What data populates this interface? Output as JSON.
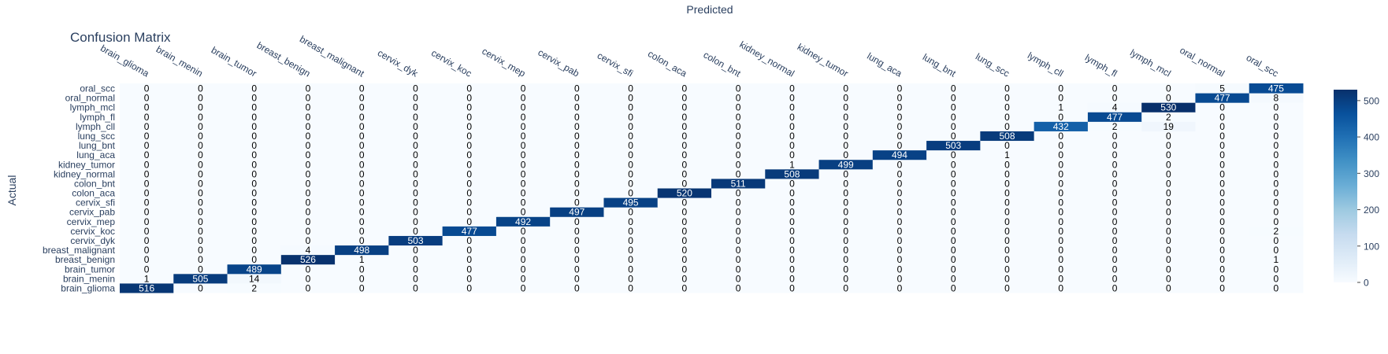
{
  "chart_data": {
    "type": "heatmap",
    "title": "Confusion Matrix",
    "xlabel": "Predicted",
    "ylabel": "Actual",
    "x": [
      "brain_glioma",
      "brain_menin",
      "brain_tumor",
      "breast_benign",
      "breast_malignant",
      "cervix_dyk",
      "cervix_koc",
      "cervix_mep",
      "cervix_pab",
      "cervix_sfi",
      "colon_aca",
      "colon_bnt",
      "kidney_normal",
      "kidney_tumor",
      "lung_aca",
      "lung_bnt",
      "lung_scc",
      "lymph_cll",
      "lymph_fl",
      "lymph_mcl",
      "oral_normal",
      "oral_scc"
    ],
    "y": [
      "brain_glioma",
      "brain_menin",
      "brain_tumor",
      "breast_benign",
      "breast_malignant",
      "cervix_dyk",
      "cervix_koc",
      "cervix_mep",
      "cervix_pab",
      "cervix_sfi",
      "colon_aca",
      "colon_bnt",
      "kidney_normal",
      "kidney_tumor",
      "lung_aca",
      "lung_bnt",
      "lung_scc",
      "lymph_cll",
      "lymph_fl",
      "lymph_mcl",
      "oral_normal",
      "oral_scc"
    ],
    "z": [
      [
        516,
        0,
        2,
        0,
        0,
        0,
        0,
        0,
        0,
        0,
        0,
        0,
        0,
        0,
        0,
        0,
        0,
        0,
        0,
        0,
        0,
        0
      ],
      [
        1,
        505,
        14,
        0,
        0,
        0,
        0,
        0,
        0,
        0,
        0,
        0,
        0,
        0,
        0,
        0,
        0,
        0,
        0,
        0,
        0,
        0
      ],
      [
        0,
        0,
        489,
        0,
        0,
        0,
        0,
        0,
        0,
        0,
        0,
        0,
        0,
        0,
        0,
        0,
        0,
        0,
        0,
        0,
        0,
        0
      ],
      [
        0,
        0,
        0,
        526,
        1,
        0,
        0,
        0,
        0,
        0,
        0,
        0,
        0,
        0,
        0,
        0,
        0,
        0,
        0,
        0,
        0,
        1
      ],
      [
        0,
        0,
        0,
        4,
        498,
        0,
        0,
        0,
        0,
        0,
        0,
        0,
        0,
        0,
        0,
        0,
        0,
        0,
        0,
        0,
        0,
        0
      ],
      [
        0,
        0,
        0,
        0,
        0,
        503,
        0,
        0,
        0,
        0,
        0,
        0,
        0,
        0,
        0,
        0,
        0,
        0,
        0,
        0,
        0,
        0
      ],
      [
        0,
        0,
        0,
        0,
        0,
        0,
        477,
        0,
        0,
        0,
        0,
        0,
        0,
        0,
        0,
        0,
        0,
        0,
        0,
        0,
        0,
        2
      ],
      [
        0,
        0,
        0,
        0,
        0,
        0,
        0,
        492,
        0,
        0,
        0,
        0,
        0,
        0,
        0,
        0,
        0,
        0,
        0,
        0,
        0,
        0
      ],
      [
        0,
        0,
        0,
        0,
        0,
        0,
        0,
        0,
        497,
        0,
        0,
        0,
        0,
        0,
        0,
        0,
        0,
        0,
        0,
        0,
        0,
        0
      ],
      [
        0,
        0,
        0,
        0,
        0,
        0,
        0,
        0,
        0,
        495,
        0,
        0,
        0,
        0,
        0,
        0,
        0,
        0,
        0,
        0,
        0,
        0
      ],
      [
        0,
        0,
        0,
        0,
        0,
        0,
        0,
        0,
        0,
        0,
        520,
        0,
        0,
        0,
        0,
        0,
        0,
        0,
        0,
        0,
        0,
        0
      ],
      [
        0,
        0,
        0,
        0,
        0,
        0,
        0,
        0,
        0,
        0,
        0,
        511,
        0,
        0,
        0,
        0,
        0,
        0,
        0,
        0,
        0,
        0
      ],
      [
        0,
        0,
        0,
        0,
        0,
        0,
        0,
        0,
        0,
        0,
        0,
        0,
        508,
        0,
        0,
        0,
        0,
        0,
        0,
        0,
        0,
        0
      ],
      [
        0,
        0,
        0,
        0,
        0,
        0,
        0,
        0,
        0,
        0,
        0,
        0,
        1,
        499,
        0,
        0,
        0,
        0,
        0,
        0,
        0,
        0
      ],
      [
        0,
        0,
        0,
        0,
        0,
        0,
        0,
        0,
        0,
        0,
        0,
        0,
        0,
        0,
        494,
        0,
        1,
        0,
        0,
        0,
        0,
        0
      ],
      [
        0,
        0,
        0,
        0,
        0,
        0,
        0,
        0,
        0,
        0,
        0,
        0,
        0,
        0,
        0,
        503,
        0,
        0,
        0,
        0,
        0,
        0
      ],
      [
        0,
        0,
        0,
        0,
        0,
        0,
        0,
        0,
        0,
        0,
        0,
        0,
        0,
        0,
        0,
        0,
        508,
        0,
        0,
        0,
        0,
        0
      ],
      [
        0,
        0,
        0,
        0,
        0,
        0,
        0,
        0,
        0,
        0,
        0,
        0,
        0,
        0,
        0,
        0,
        0,
        432,
        2,
        19,
        0,
        0
      ],
      [
        0,
        0,
        0,
        0,
        0,
        0,
        0,
        0,
        0,
        0,
        0,
        0,
        0,
        0,
        0,
        0,
        0,
        0,
        477,
        2,
        0,
        0
      ],
      [
        0,
        0,
        0,
        0,
        0,
        0,
        0,
        0,
        0,
        0,
        0,
        0,
        0,
        0,
        0,
        0,
        0,
        1,
        4,
        530,
        0,
        0
      ],
      [
        0,
        0,
        0,
        0,
        0,
        0,
        0,
        0,
        0,
        0,
        0,
        0,
        0,
        0,
        0,
        0,
        0,
        0,
        0,
        0,
        477,
        8
      ],
      [
        0,
        0,
        0,
        0,
        0,
        0,
        0,
        0,
        0,
        0,
        0,
        0,
        0,
        0,
        0,
        0,
        0,
        0,
        0,
        0,
        5,
        475
      ]
    ],
    "zmin": 0,
    "zmax": 530,
    "colorscale": "Blues",
    "colorbar_ticks": [
      0,
      100,
      200,
      300,
      400,
      500
    ],
    "x_axis_side": "top",
    "show_text": true
  }
}
